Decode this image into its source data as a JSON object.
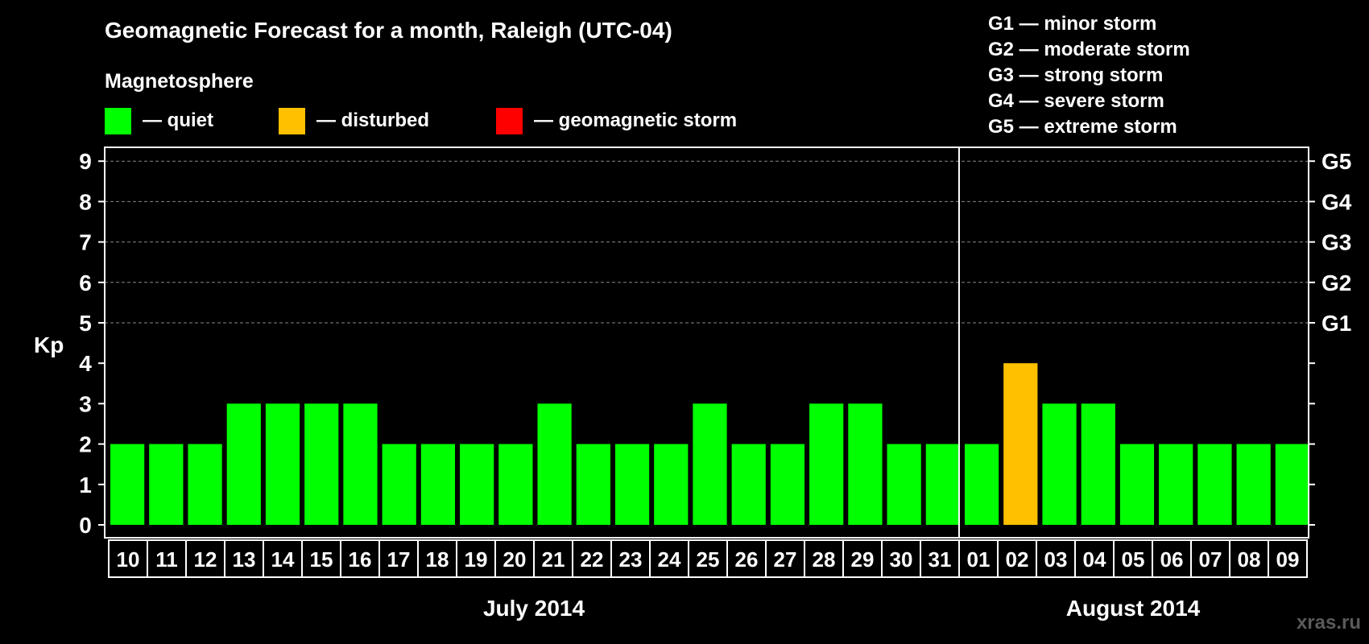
{
  "chart_data": {
    "type": "bar",
    "title": "Geomagnetic Forecast for a month, Raleigh (UTC-04)",
    "subtitle": "Magnetosphere",
    "ylabel": "Kp",
    "ylim": [
      0,
      9
    ],
    "yticks": [
      "0",
      "1",
      "2",
      "3",
      "4",
      "5",
      "6",
      "7",
      "8",
      "9"
    ],
    "right_ticks": [
      {
        "kp": 5,
        "label": "G1"
      },
      {
        "kp": 6,
        "label": "G2"
      },
      {
        "kp": 7,
        "label": "G3"
      },
      {
        "kp": 8,
        "label": "G4"
      },
      {
        "kp": 9,
        "label": "G5"
      }
    ],
    "grid": "dashed horizontal at Kp 5-9",
    "categories": [
      "10",
      "11",
      "12",
      "13",
      "14",
      "15",
      "16",
      "17",
      "18",
      "19",
      "20",
      "21",
      "22",
      "23",
      "24",
      "25",
      "26",
      "27",
      "28",
      "29",
      "30",
      "31",
      "01",
      "02",
      "03",
      "04",
      "05",
      "06",
      "07",
      "08",
      "09"
    ],
    "values": [
      2,
      2,
      2,
      3,
      3,
      3,
      3,
      2,
      2,
      2,
      2,
      3,
      2,
      2,
      2,
      3,
      2,
      2,
      3,
      3,
      2,
      2,
      2,
      4,
      3,
      3,
      2,
      2,
      2,
      2,
      2
    ],
    "months": [
      {
        "label": "July 2014",
        "start_index": 0,
        "end_index": 21
      },
      {
        "label": "August 2014",
        "start_index": 22,
        "end_index": 30
      }
    ],
    "legend": {
      "placement": "top",
      "items": [
        {
          "label": "— quiet",
          "color": "#00ff00"
        },
        {
          "label": "— disturbed",
          "color": "#ffc000"
        },
        {
          "label": "— geomagnetic storm",
          "color": "#ff0000"
        }
      ]
    },
    "storm_scale": [
      "G1 — minor storm",
      "G2 — moderate storm",
      "G3 — strong storm",
      "G4 — severe storm",
      "G5 — extreme storm"
    ],
    "colors": {
      "quiet": "#00ff00",
      "disturbed": "#ffc000",
      "storm": "#ff0000",
      "background": "#000000",
      "axis": "#ffffff",
      "grid": "#888888"
    }
  },
  "watermark": "xras.ru"
}
